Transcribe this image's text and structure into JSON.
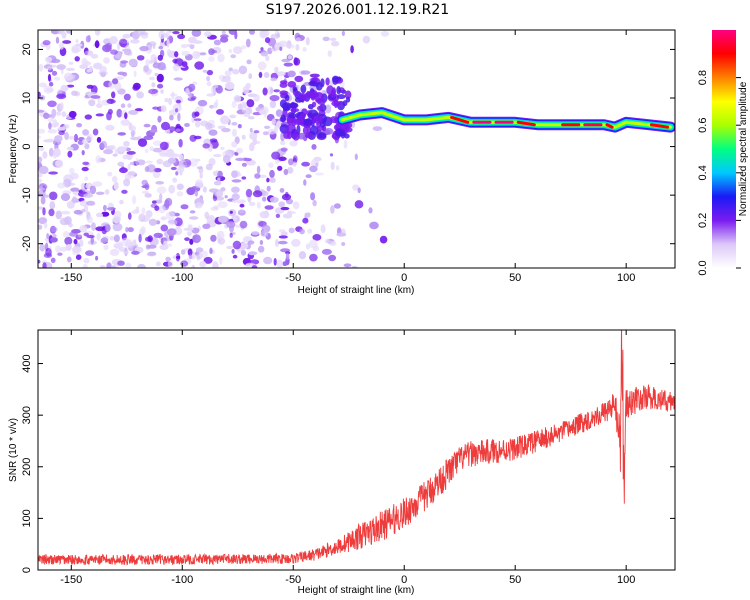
{
  "title": "S197.2026.001.12.19.R21",
  "chart_data": [
    {
      "type": "heatmap",
      "xlabel": "Height of straight line (km)",
      "ylabel": "Frequency (Hz)",
      "xlim": [
        -165,
        122
      ],
      "ylim": [
        -25,
        24
      ],
      "xticks": [
        -150,
        -100,
        -50,
        0,
        50,
        100
      ],
      "yticks": [
        -20,
        -10,
        0,
        10,
        20
      ],
      "colorbar": {
        "label": "Normalized spectral amplitude",
        "range": [
          0,
          1
        ],
        "ticks": [
          0.0,
          0.2,
          0.4,
          0.6,
          0.8
        ],
        "tick_labels": [
          "0.0",
          "0.2",
          "0.4",
          "0.6",
          "0.8"
        ],
        "colors": [
          "#ffffff",
          "#dcc8f8",
          "#7a1cf0",
          "#1a1af5",
          "#00c8ff",
          "#00ff80",
          "#aaff00",
          "#ffff00",
          "#ff8000",
          "#ff0000",
          "#ff0080"
        ]
      },
      "ridge": {
        "x": [
          -28,
          -20,
          -10,
          0,
          10,
          20,
          30,
          40,
          50,
          60,
          70,
          80,
          90,
          95,
          100,
          110,
          120
        ],
        "y": [
          5.5,
          6.5,
          7.0,
          5.5,
          5.5,
          6.0,
          5.0,
          5.0,
          5.0,
          4.5,
          4.5,
          4.5,
          4.5,
          4.0,
          5.0,
          4.5,
          4.0
        ],
        "amplitude": [
          0.6,
          0.7,
          0.8,
          0.7,
          0.8,
          0.9,
          1.0,
          1.0,
          0.9,
          0.8,
          0.9,
          0.95,
          0.9,
          0.7,
          0.8,
          0.9,
          1.0
        ]
      },
      "noise_region": {
        "x_range": [
          -165,
          -25
        ],
        "y_range": [
          -25,
          24
        ],
        "amplitude": [
          0.05,
          0.2
        ]
      }
    },
    {
      "type": "line",
      "xlabel": "Height of straight line (km)",
      "ylabel": "SNR (10 * v/v)",
      "xlim": [
        -165,
        122
      ],
      "ylim": [
        0,
        465
      ],
      "xticks": [
        -150,
        -100,
        -50,
        0,
        50,
        100
      ],
      "yticks": [
        0,
        100,
        200,
        300,
        400
      ],
      "color": "#ee3b3b",
      "series": [
        {
          "x": [
            -165,
            -150,
            -100,
            -50,
            -40,
            -30,
            -20,
            -10,
            0,
            10,
            20,
            25,
            30,
            40,
            50,
            60,
            70,
            80,
            90,
            95,
            98,
            100,
            105,
            110,
            115,
            122
          ],
          "y": [
            20,
            20,
            20,
            22,
            30,
            45,
            65,
            85,
            110,
            145,
            190,
            215,
            225,
            230,
            235,
            250,
            265,
            285,
            305,
            320,
            240,
            320,
            330,
            335,
            330,
            325
          ],
          "noise_amplitude": [
            10,
            10,
            10,
            10,
            12,
            15,
            25,
            30,
            30,
            30,
            30,
            25,
            25,
            25,
            22,
            22,
            20,
            20,
            20,
            25,
            80,
            30,
            25,
            25,
            20,
            20
          ]
        }
      ]
    }
  ]
}
